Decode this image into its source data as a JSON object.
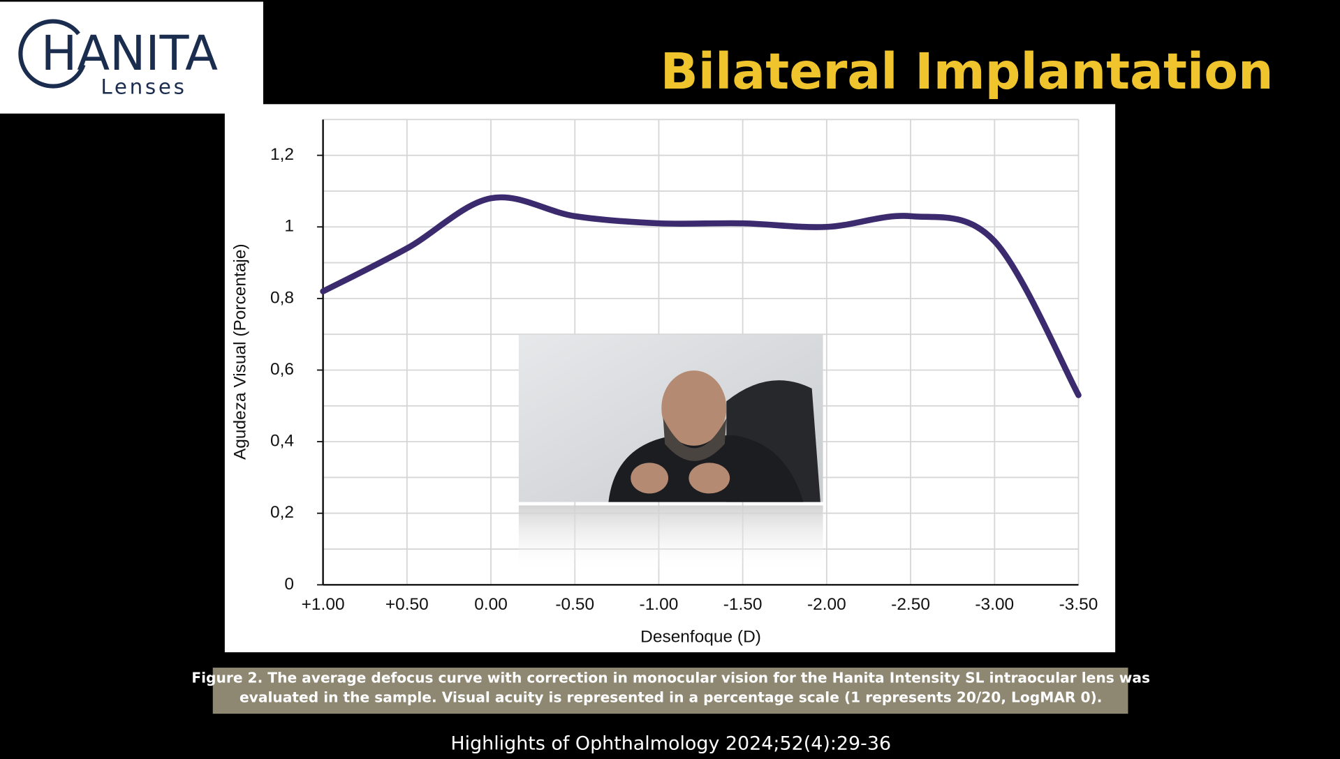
{
  "logo": {
    "brand": "HANITA",
    "sub": "Lenses"
  },
  "slide_title": "Bilateral Implantation",
  "chart_data": {
    "type": "line",
    "categories": [
      "+1.00",
      "+0.50",
      "0.00",
      "-0.50",
      "-1.00",
      "-1.50",
      "-2.00",
      "-2.50",
      "-3.00",
      "-3.50"
    ],
    "series": [
      {
        "color": "#3b2a6e",
        "values": [
          0.82,
          0.94,
          1.08,
          1.03,
          1.01,
          1.01,
          1.0,
          1.03,
          0.96,
          0.53
        ]
      }
    ],
    "ylim": [
      0,
      1.3
    ],
    "yticks": [
      0,
      {
        "value": 0.2,
        "label": "0,2"
      },
      {
        "value": 0.4,
        "label": "0,4"
      },
      {
        "value": 0.6,
        "label": "0,6"
      },
      {
        "value": 0.8,
        "label": "0,8"
      },
      1,
      {
        "value": 1.2,
        "label": "1,2"
      }
    ],
    "yminorticks": [
      0.1,
      0.3,
      0.5,
      0.7,
      0.9,
      1.1,
      1.3
    ],
    "grid": true,
    "xlabel": "Desenfoque (D)",
    "ylabel": "Agudeza Visual (Porcentaje)"
  },
  "caption": [
    "Figure 2. The average defocus curve with correction in monocular vision for the Hanita Intensity SL intraocular lens was",
    "evaluated in the sample. Visual acuity is represented in a percentage scale (1 represents 20/20, LogMAR 0)."
  ],
  "citation": "Highlights of Ophthalmology 2024;52(4):29-36"
}
